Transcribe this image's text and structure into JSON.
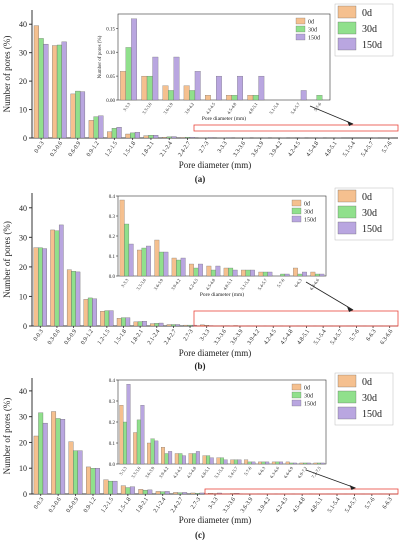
{
  "panels": [
    {
      "label": "(a)"
    },
    {
      "label": "(b)"
    },
    {
      "label": "(c)"
    }
  ],
  "colors": {
    "0d": "#f5c08f",
    "30d": "#90e08c",
    "150d": "#b9a6e0",
    "zoom_box": "#e8463c",
    "axis": "#333333"
  },
  "chart_data": [
    {
      "type": "bar",
      "panel": "(a)",
      "ylabel": "Number of pores (%)",
      "xlabel": "Pore diameter (mm)",
      "ylim": [
        0,
        45
      ],
      "yticks": [
        0,
        10,
        20,
        30,
        40
      ],
      "categories": [
        "0-0.3",
        "0.3-0.6",
        "0.6-0.9",
        "0.9-1.2",
        "1.2-1.5",
        "1.5-1.8",
        "1.8-2.1",
        "2.1-2.4",
        "2.4-2.7",
        "2.7-3",
        "3-3.3",
        "3.3-3.6",
        "3.6-3.9",
        "3.9-4.2",
        "4.2-4.5",
        "4.5-4.8",
        "4.8-5.1",
        "5.1-5.4",
        "5.4-5.7",
        "5.7-6"
      ],
      "series": [
        {
          "name": "0d",
          "values": [
            39.5,
            32.5,
            15.5,
            6.2,
            2.2,
            1.4,
            0.8,
            0.3,
            0.2,
            0.1,
            0.06,
            0.05,
            0.03,
            0.03,
            0.01,
            0.01,
            0.01,
            0.0,
            0.0,
            0.0
          ]
        },
        {
          "name": "30d",
          "values": [
            35.0,
            32.7,
            16.5,
            7.5,
            3.4,
            1.8,
            1.0,
            0.4,
            0.3,
            0.1,
            0.11,
            0.05,
            0.02,
            0.02,
            0.0,
            0.01,
            0.01,
            0.0,
            0.0,
            0.01
          ]
        },
        {
          "name": "150d",
          "values": [
            33.0,
            33.8,
            16.3,
            7.8,
            3.8,
            2.0,
            1.0,
            0.5,
            0.3,
            0.2,
            0.17,
            0.09,
            0.09,
            0.06,
            0.05,
            0.05,
            0.05,
            0.0,
            0.02,
            0.0
          ]
        }
      ],
      "inset": {
        "categories": [
          "3-3.3",
          "3.3-3.6",
          "3.6-3.9",
          "3.9-4.2",
          "4.2-4.5",
          "4.5-4.8",
          "4.8-5.1",
          "5.1-5.4",
          "5.4-5.7",
          "5.7-6"
        ],
        "ylim": [
          0,
          0.18
        ],
        "yticks": [
          0.0,
          0.05,
          0.1,
          0.15
        ],
        "ylabel": "Number of pores (%)",
        "xlabel": "Pore diameter (mm)",
        "series": [
          {
            "name": "0d",
            "values": [
              0.06,
              0.05,
              0.03,
              0.03,
              0.01,
              0.01,
              0.01,
              0.0,
              0.0,
              0.0
            ]
          },
          {
            "name": "30d",
            "values": [
              0.11,
              0.05,
              0.02,
              0.02,
              0.0,
              0.01,
              0.01,
              0.0,
              0.0,
              0.01
            ]
          },
          {
            "name": "150d",
            "values": [
              0.17,
              0.09,
              0.09,
              0.06,
              0.05,
              0.05,
              0.05,
              0.0,
              0.02,
              0.0
            ]
          }
        ]
      }
    },
    {
      "type": "bar",
      "panel": "(b)",
      "ylabel": "Number of pores (%)",
      "xlabel": "Pore diameter (mm)",
      "ylim": [
        0,
        45
      ],
      "yticks": [
        0,
        10,
        20,
        30,
        40
      ],
      "categories": [
        "0-0.3",
        "0.3-0.6",
        "0.6-0.9",
        "0.9-1.2",
        "1.2-1.5",
        "1.5-1.8",
        "1.8-2.1",
        "2.1-2.4",
        "2.4-2.7",
        "2.7-3",
        "3-3.3",
        "3.3-3.6",
        "3.6-3.9",
        "3.9-4.2",
        "4.2-4.5",
        "4.5-4.8",
        "4.8-5.1",
        "5.1-5.4",
        "5.4-5.7",
        "5.7-6",
        "6-6.3",
        "6.3-6.6"
      ],
      "series": [
        {
          "name": "0d",
          "values": [
            26.5,
            32.5,
            19.0,
            9.0,
            5.0,
            2.6,
            1.4,
            0.8,
            0.5,
            0.3,
            0.38,
            0.13,
            0.18,
            0.09,
            0.06,
            0.05,
            0.04,
            0.03,
            0.02,
            0.0,
            0.04,
            0.02
          ]
        },
        {
          "name": "30d",
          "values": [
            26.5,
            32.2,
            18.5,
            9.5,
            5.2,
            2.8,
            1.5,
            0.9,
            0.5,
            0.3,
            0.26,
            0.14,
            0.12,
            0.08,
            0.04,
            0.03,
            0.04,
            0.03,
            0.02,
            0.01,
            0.01,
            0.01
          ]
        },
        {
          "name": "150d",
          "values": [
            26.2,
            34.2,
            18.3,
            9.2,
            5.2,
            2.8,
            1.6,
            1.0,
            0.5,
            0.3,
            0.16,
            0.15,
            0.12,
            0.09,
            0.06,
            0.05,
            0.03,
            0.03,
            0.02,
            0.01,
            0.02,
            0.01
          ]
        }
      ],
      "inset": {
        "categories": [
          "3-3.3",
          "3.3-3.6",
          "3.6-3.9",
          "3.9-4.2",
          "4.2-4.5",
          "4.5-4.8",
          "4.8-5.1",
          "5.1-5.4",
          "5.4-5.7",
          "5.7-6",
          "6-6.3",
          "6.3-6.6"
        ],
        "ylim": [
          0,
          0.4
        ],
        "yticks": [
          0.0,
          0.1,
          0.2,
          0.3,
          0.4
        ],
        "ylabel": "",
        "xlabel": "Pore diameter (mm)",
        "series": [
          {
            "name": "0d",
            "values": [
              0.38,
              0.13,
              0.18,
              0.09,
              0.06,
              0.05,
              0.04,
              0.03,
              0.02,
              0.0,
              0.04,
              0.02
            ]
          },
          {
            "name": "30d",
            "values": [
              0.26,
              0.14,
              0.12,
              0.08,
              0.04,
              0.03,
              0.04,
              0.03,
              0.02,
              0.01,
              0.01,
              0.01
            ]
          },
          {
            "name": "150d",
            "values": [
              0.16,
              0.15,
              0.12,
              0.09,
              0.06,
              0.05,
              0.03,
              0.03,
              0.02,
              0.01,
              0.02,
              0.01
            ]
          }
        ]
      }
    },
    {
      "type": "bar",
      "panel": "(c)",
      "ylabel": "Number of pores (%)",
      "xlabel": "Pore diameter (mm)",
      "ylim": [
        0,
        45
      ],
      "yticks": [
        0,
        10,
        20,
        30,
        40
      ],
      "categories": [
        "0-0.3",
        "0.3-0.6",
        "0.6-0.9",
        "0.9-1.2",
        "1.2-1.5",
        "1.5-1.8",
        "1.8-2.1",
        "2.1-2.4",
        "2.4-2.7",
        "2.7-3",
        "3-3.3",
        "3.3-3.6",
        "3.6-3.9",
        "3.9-4.2",
        "4.2-4.5",
        "4.5-4.8",
        "4.8-5.1",
        "5.1-5.4",
        "5.4-5.7",
        "5.7-6",
        "6-6.3"
      ],
      "series": [
        {
          "name": "0d",
          "values": [
            22.5,
            32.0,
            20.3,
            10.5,
            5.5,
            3.2,
            1.8,
            1.0,
            0.6,
            0.4,
            0.28,
            0.15,
            0.1,
            0.08,
            0.05,
            0.05,
            0.04,
            0.03,
            0.02,
            0.02,
            0.01
          ]
        },
        {
          "name": "30d",
          "values": [
            31.5,
            29.3,
            16.8,
            10.0,
            5.0,
            2.5,
            1.5,
            0.9,
            0.5,
            0.3,
            0.2,
            0.21,
            0.12,
            0.05,
            0.05,
            0.05,
            0.04,
            0.03,
            0.02,
            0.01,
            0.01
          ]
        },
        {
          "name": "150d",
          "values": [
            27.5,
            29.0,
            16.8,
            10.0,
            5.0,
            2.8,
            1.6,
            1.0,
            0.6,
            0.4,
            0.38,
            0.28,
            0.11,
            0.06,
            0.04,
            0.06,
            0.03,
            0.02,
            0.02,
            0.01,
            0.01
          ]
        }
      ],
      "inset": {
        "categories": [
          "3-3.3",
          "3.3-3.6",
          "3.6-3.9",
          "3.9-4.2",
          "4.2-4.5",
          "4.5-4.8",
          "4.8-5.1",
          "5.1-5.4",
          "5.4-5.7",
          "5.7-6",
          "6-6.3",
          "6.3-6.6",
          "6.6-6.9",
          "6.9-7.2",
          "7.2-7.5"
        ],
        "ylim": [
          0,
          0.4
        ],
        "yticks": [
          0.0,
          0.1,
          0.2,
          0.3,
          0.4
        ],
        "ylabel": "",
        "xlabel": "",
        "series": [
          {
            "name": "0d",
            "values": [
              0.28,
              0.15,
              0.1,
              0.08,
              0.05,
              0.05,
              0.04,
              0.03,
              0.02,
              0.02,
              0.01,
              0.01,
              0.01,
              0.005,
              0.005
            ]
          },
          {
            "name": "30d",
            "values": [
              0.2,
              0.21,
              0.12,
              0.05,
              0.05,
              0.05,
              0.04,
              0.03,
              0.02,
              0.01,
              0.01,
              0.01,
              0.005,
              0.005,
              0.005
            ]
          },
          {
            "name": "150d",
            "values": [
              0.38,
              0.28,
              0.11,
              0.06,
              0.04,
              0.06,
              0.03,
              0.02,
              0.02,
              0.01,
              0.01,
              0.01,
              0.005,
              0.005,
              0.005
            ]
          }
        ]
      }
    }
  ]
}
